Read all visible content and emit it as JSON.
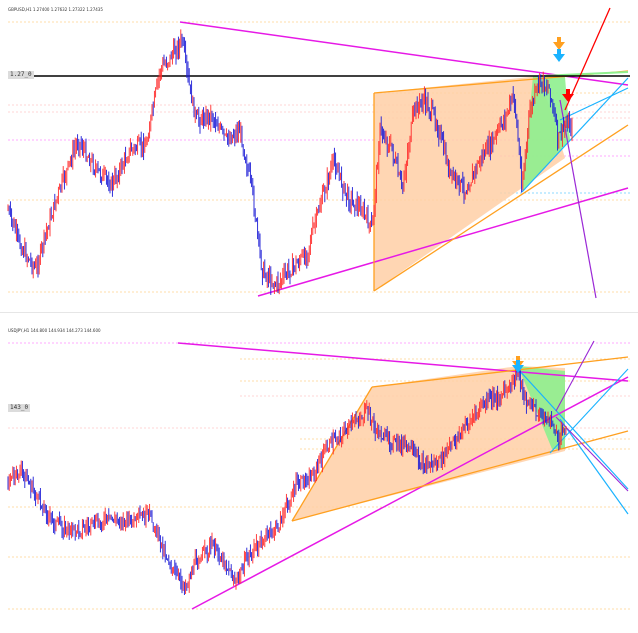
{
  "colors": {
    "bull": "#ff2a2a",
    "bear": "#1a1ad6",
    "magenta": "#e619e6",
    "orange": "#ffa020",
    "orange_fill": "#ffcfa6",
    "green_fill": "#8ef08e",
    "cyan": "#1ab3ff",
    "red": "#ff0000",
    "purple": "#9a28d6",
    "black": "#000000",
    "hline_red": "#ffaaaa",
    "hline_orange": "#ffbb55",
    "hline_magenta": "#ff55ff"
  },
  "top": {
    "title": "GBPUSD,H1  1.27400 1.27632 1.27322 1.27435",
    "level_label": "1.27_0"
  },
  "bottom": {
    "title": "USDJPY,H1  144.800 144.934 144.273 144.600",
    "level_label": "143_0"
  },
  "chart_data": [
    {
      "type": "candlestick",
      "title": "GBPUSD,H1",
      "ohlc_header": [
        1.274,
        1.27632,
        1.27322,
        1.27435
      ],
      "grid": false,
      "annotations": [
        "resistance trendline (magenta)",
        "rising channel (orange) with shaded wedge",
        "green shaded pattern",
        "arrow markers (orange, cyan, red)"
      ]
    },
    {
      "type": "candlestick",
      "title": "USDJPY,H1",
      "ohlc_header": [
        144.8,
        144.934,
        144.273,
        144.6
      ],
      "grid": false,
      "annotations": [
        "falling trendline (magenta)",
        "rising support trendline (magenta)",
        "orange channel with shaded wedge",
        "green shaded pattern",
        "cyan down channel",
        "arrow markers"
      ]
    }
  ]
}
